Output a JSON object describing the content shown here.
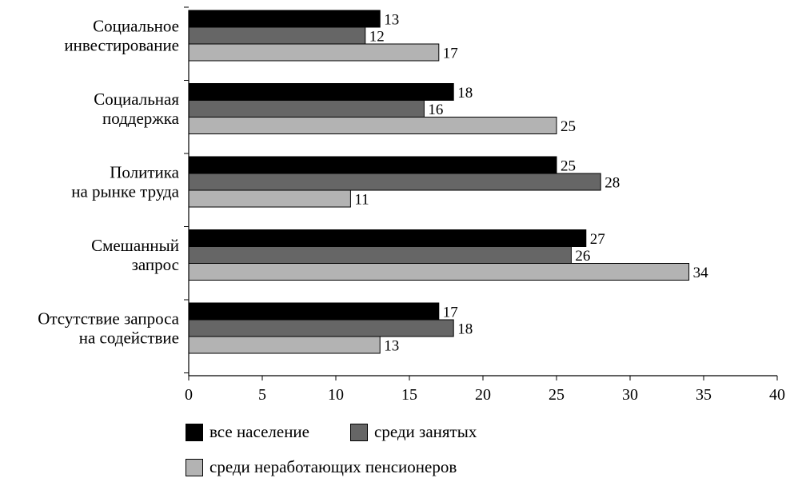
{
  "chart_data": {
    "type": "bar",
    "orientation": "horizontal",
    "categories": [
      [
        "Социальное",
        "инвестирование"
      ],
      [
        "Социальная",
        "поддержка"
      ],
      [
        "Политика",
        "на рынке труда"
      ],
      [
        "Смешанный",
        "запрос"
      ],
      [
        "Отсутствие запроса",
        "на содействие"
      ]
    ],
    "series": [
      {
        "name": "все население",
        "color": "#000000",
        "values": [
          13,
          18,
          25,
          27,
          17
        ]
      },
      {
        "name": "среди занятых",
        "color": "#666666",
        "values": [
          12,
          16,
          28,
          26,
          18
        ]
      },
      {
        "name": "среди неработающих пенсионеров",
        "color": "#b3b3b3",
        "values": [
          17,
          25,
          11,
          34,
          13
        ]
      }
    ],
    "xlim": [
      0,
      40
    ],
    "xticks": [
      0,
      5,
      10,
      15,
      20,
      25,
      30,
      35,
      40
    ],
    "grid": false,
    "legend": "bottom"
  }
}
